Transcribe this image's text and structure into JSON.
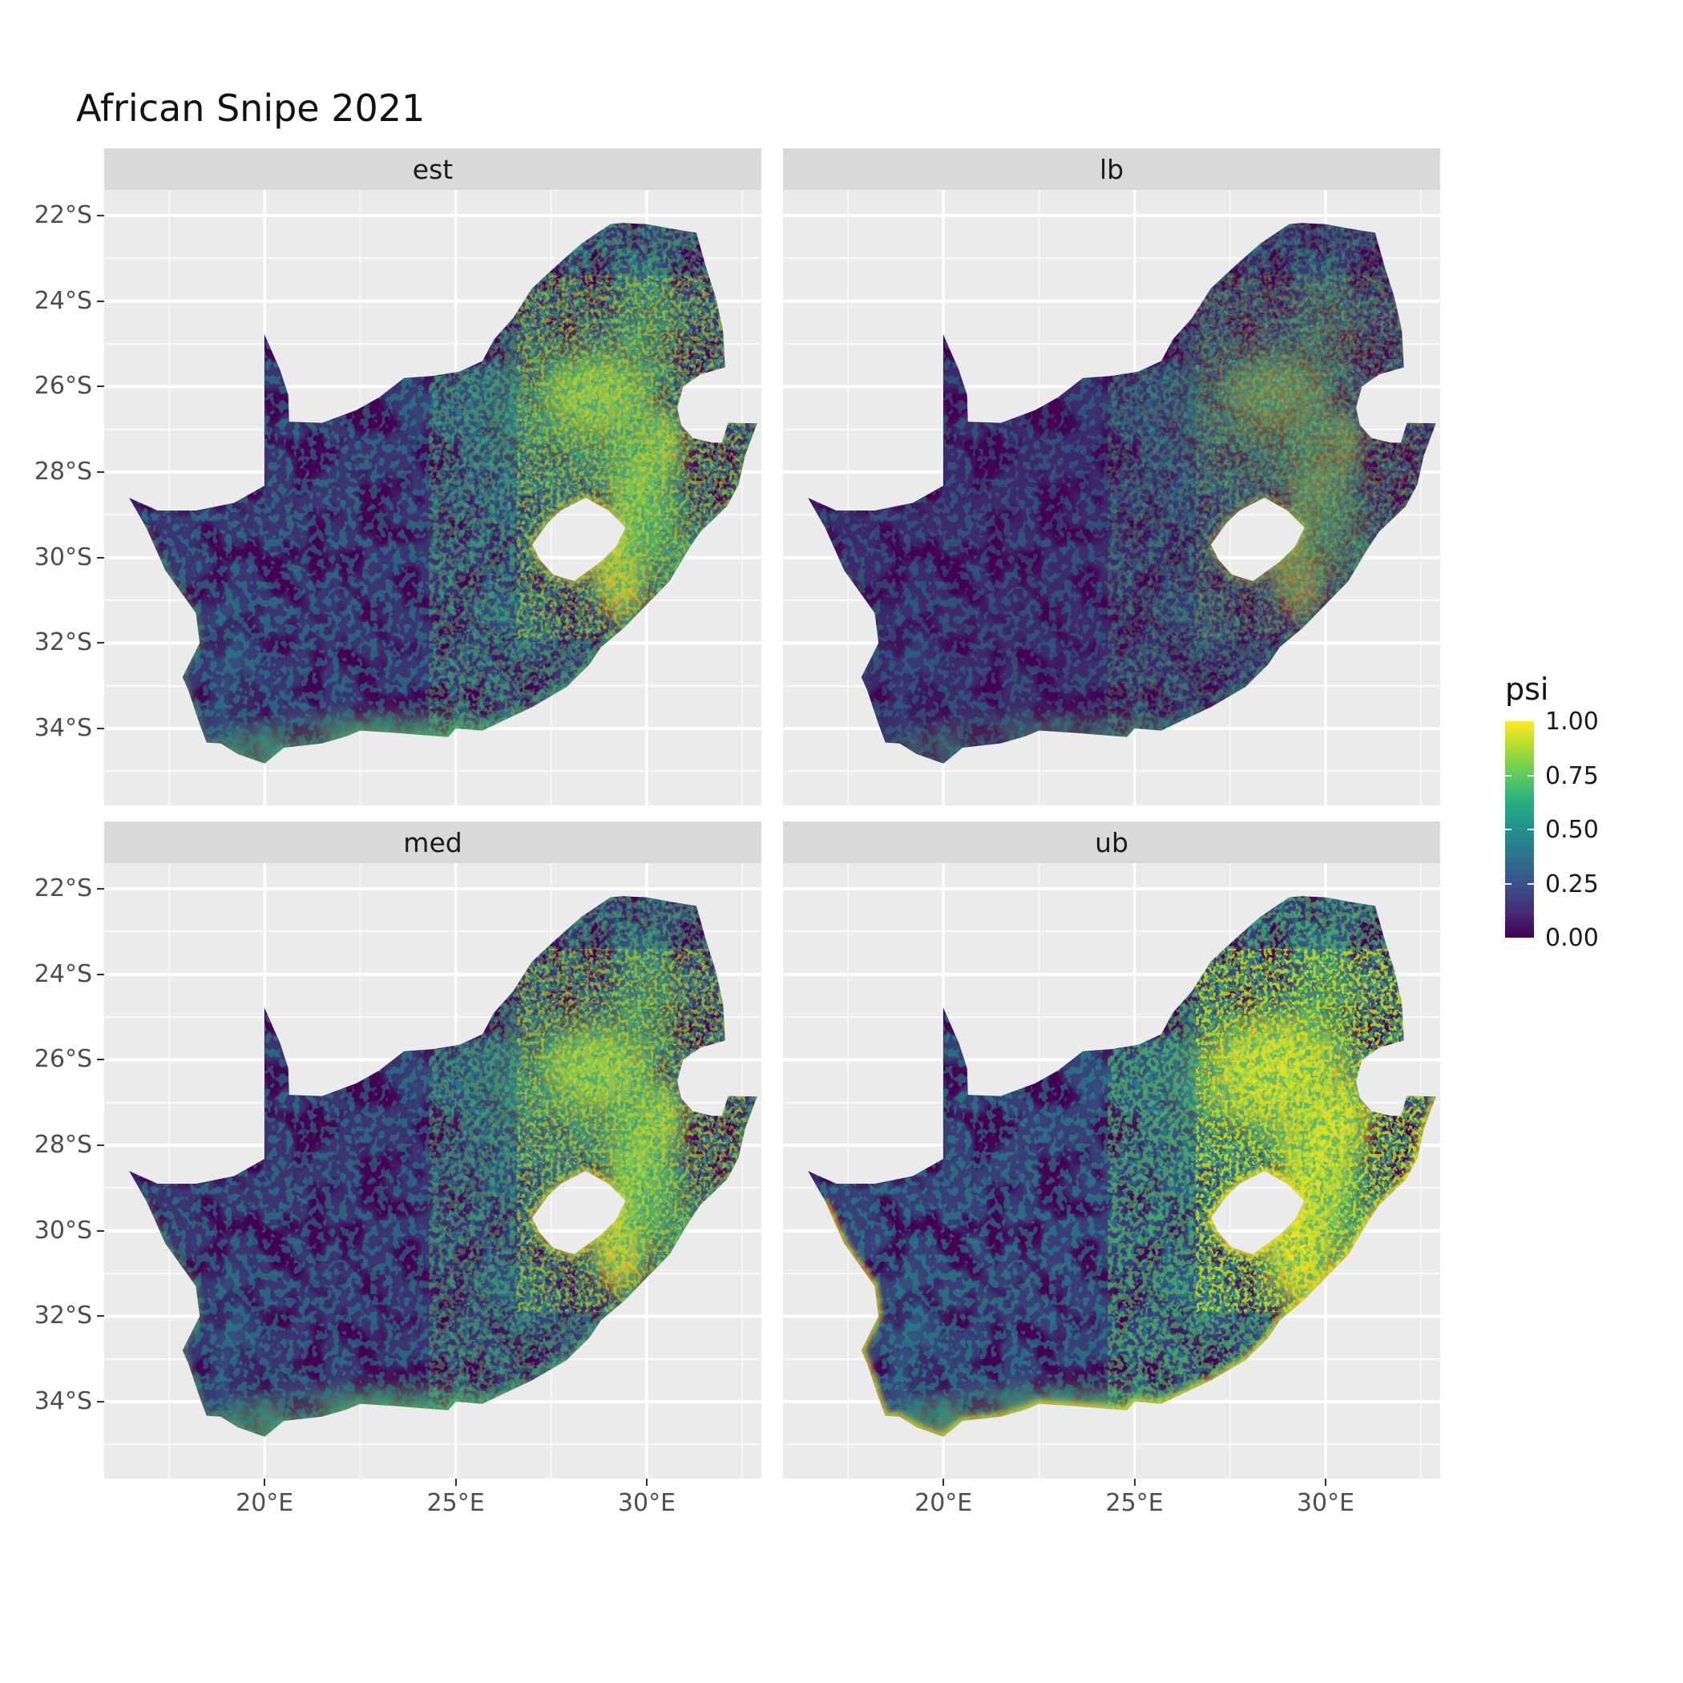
{
  "title": "African Snipe 2021",
  "facets": [
    {
      "id": "est",
      "label": "est"
    },
    {
      "id": "lb",
      "label": "lb"
    },
    {
      "id": "med",
      "label": "med"
    },
    {
      "id": "ub",
      "label": "ub"
    }
  ],
  "axes": {
    "x_ticks": [
      "20°E",
      "25°E",
      "30°E"
    ],
    "y_ticks": [
      "22°S",
      "24°S",
      "26°S",
      "28°S",
      "30°S",
      "32°S",
      "34°S"
    ]
  },
  "legend": {
    "title": "psi",
    "labels": [
      "1.00",
      "0.75",
      "0.50",
      "0.25",
      "0.00"
    ]
  },
  "chart_data": {
    "type": "heatmap",
    "subtype": "faceted raster occupancy map of South Africa (2x2 facet grid)",
    "title": "African Snipe 2021",
    "facets": [
      "est",
      "lb",
      "med",
      "ub"
    ],
    "value_name": "psi",
    "value_range": [
      0,
      1
    ],
    "legend_breaks": [
      1.0,
      0.75,
      0.5,
      0.25,
      0.0
    ],
    "legend_position": "right",
    "grid": true,
    "palette": {
      "name": "viridis",
      "stops": {
        "0.00": "#440154",
        "0.25": "#3b528b",
        "0.50": "#21918c",
        "0.75": "#5ec962",
        "1.00": "#fde725"
      }
    },
    "x_axis": {
      "label": "",
      "ticks_deg_east": [
        20,
        25,
        30
      ],
      "approx_range_deg_east": [
        15.8,
        33.0
      ]
    },
    "y_axis": {
      "label": "",
      "ticks_deg_south": [
        22,
        24,
        26,
        28,
        30,
        32,
        34
      ],
      "approx_range_deg_south": [
        21.4,
        35.8
      ]
    },
    "map_region": "South Africa; Lesotho and Eswatini appear as holes (no data)",
    "facet_pattern_summary": {
      "est": "Bright yellow-green core over the eastern highveld (~26-27°S, 28-30°E), green arc along the escarpment and around Lesotho, scattered teal speckle inland, dark purple across the west",
      "lb": "Same spatial pattern with the lowest values overall; bright core smaller and dimmer, west almost entirely dark purple",
      "med": "Similar to est; strong yellow core and bright ring east of Lesotho, green along the south coast",
      "ub": "Highest values: broad yellow across the whole east plus a bright yellow strip along the southern and eastern coastline"
    },
    "hotspots": [
      {
        "lon_e": 28.7,
        "lat_s": 26.3,
        "rx_deg": 1.7,
        "ry_deg": 1.2,
        "psi": 0.95
      },
      {
        "lon_e": 29.7,
        "lat_s": 28.4,
        "rx_deg": 0.8,
        "ry_deg": 1.4,
        "psi": 0.9
      },
      {
        "lon_e": 29.3,
        "lat_s": 30.3,
        "rx_deg": 0.9,
        "ry_deg": 1.4,
        "psi": 0.9
      },
      {
        "lon_e": 30.4,
        "lat_s": 27.4,
        "rx_deg": 0.7,
        "ry_deg": 1.0,
        "psi": 0.9
      },
      {
        "lon_e": 28.3,
        "lat_s": 26.6,
        "rx_deg": 3.0,
        "ry_deg": 2.2,
        "psi": 0.7
      },
      {
        "lon_e": 30.0,
        "lat_s": 24.6,
        "rx_deg": 1.1,
        "ry_deg": 1.6,
        "psi": 0.7
      },
      {
        "lon_e": 29.9,
        "lat_s": 28.6,
        "rx_deg": 1.4,
        "ry_deg": 2.4,
        "psi": 0.7
      },
      {
        "lon_e": 30.3,
        "lat_s": 29.5,
        "rx_deg": 1.1,
        "ry_deg": 1.3,
        "psi": 0.7
      },
      {
        "lon_e": 23.5,
        "lat_s": 34.1,
        "rx_deg": 3.6,
        "ry_deg": 0.6,
        "psi": 0.7
      },
      {
        "lon_e": 19.8,
        "lat_s": 34.4,
        "rx_deg": 1.3,
        "ry_deg": 0.6,
        "psi": 0.7
      },
      {
        "lon_e": 25.5,
        "lat_s": 26.5,
        "rx_deg": 2.2,
        "ry_deg": 1.3,
        "psi": 0.45
      },
      {
        "lon_e": 26.8,
        "lat_s": 28.6,
        "rx_deg": 2.0,
        "ry_deg": 1.6,
        "psi": 0.45
      },
      {
        "lon_e": 26.5,
        "lat_s": 31.5,
        "rx_deg": 1.6,
        "ry_deg": 1.2,
        "psi": 0.5
      },
      {
        "lon_e": 19.3,
        "lat_s": 33.3,
        "rx_deg": 0.8,
        "ry_deg": 1.3,
        "psi": 0.5
      },
      {
        "lon_e": 19.1,
        "lat_s": 31.8,
        "rx_deg": 0.6,
        "ry_deg": 1.1,
        "psi": 0.5
      },
      {
        "lon_e": 29.8,
        "lat_s": 23.4,
        "rx_deg": 1.0,
        "ry_deg": 1.2,
        "psi": 0.45
      }
    ]
  }
}
